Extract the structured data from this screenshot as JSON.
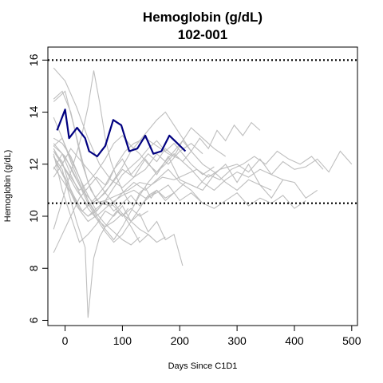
{
  "chart_data": {
    "type": "line",
    "title": "Hemoglobin (g/dL)",
    "subtitle": "102-001",
    "xlabel": "Days Since C1D1",
    "ylabel": "Hemoglobin (g/dL)",
    "xlim": [
      -30,
      510
    ],
    "ylim": [
      5.8,
      16.5
    ],
    "xticks": [
      0,
      100,
      200,
      300,
      400,
      500
    ],
    "yticks": [
      6,
      8,
      10,
      12,
      14,
      16
    ],
    "reference_lines": [
      16,
      10.5
    ],
    "grid": false,
    "highlight_color": "#000080",
    "background_color": "#bebebe",
    "highlight": {
      "name": "102-001",
      "x": [
        -14,
        0,
        7,
        21,
        35,
        42,
        56,
        70,
        84,
        98,
        112,
        126,
        140,
        154,
        168,
        182,
        196,
        210
      ],
      "y": [
        13.3,
        14.1,
        13.0,
        13.4,
        13.0,
        12.5,
        12.3,
        12.7,
        13.7,
        13.5,
        12.5,
        12.6,
        13.1,
        12.4,
        12.5,
        13.1,
        12.8,
        12.5
      ]
    },
    "background": [
      {
        "x": [
          -20,
          0,
          15,
          30,
          50,
          70,
          90,
          110,
          130,
          150,
          170,
          190,
          210,
          230,
          250,
          270,
          300,
          320,
          340,
          360,
          380,
          400,
          420,
          440,
          460,
          480,
          500
        ],
        "y": [
          12.7,
          12.3,
          11.6,
          11.0,
          10.5,
          10.6,
          10.8,
          11.0,
          11.3,
          11.2,
          11.5,
          11.4,
          11.6,
          11.8,
          11.5,
          11.8,
          12.0,
          11.7,
          12.2,
          11.6,
          12.1,
          11.8,
          11.9,
          12.2,
          11.7,
          12.5,
          12.0
        ]
      },
      {
        "x": [
          -20,
          0,
          20,
          40,
          60,
          80,
          100,
          120,
          140,
          160,
          180,
          200,
          220,
          240,
          260,
          280,
          300,
          320,
          340,
          360,
          380,
          400,
          420,
          440
        ],
        "y": [
          12.5,
          11.8,
          11.0,
          10.4,
          10.7,
          11.2,
          11.8,
          11.5,
          12.2,
          11.6,
          12.3,
          11.4,
          11.2,
          11.0,
          11.6,
          12.0,
          11.3,
          12.0,
          11.2,
          10.7,
          11.4,
          11.3,
          10.7,
          11.0
        ]
      },
      {
        "x": [
          -20,
          0,
          20,
          40,
          60,
          80,
          100,
          120,
          140,
          160,
          180,
          200,
          220,
          240
        ],
        "y": [
          15.7,
          15.2,
          14.2,
          13.0,
          12.0,
          11.4,
          11.1,
          11.5,
          11.8,
          12.4,
          12.0,
          12.5,
          12.8,
          12.4
        ]
      },
      {
        "x": [
          -20,
          0,
          15,
          30,
          45,
          60,
          80,
          100,
          120,
          140,
          160,
          180,
          200,
          220,
          240
        ],
        "y": [
          14.4,
          14.8,
          13.5,
          12.0,
          11.0,
          10.5,
          10.4,
          10.9,
          11.3,
          11.0,
          11.4,
          11.8,
          11.3,
          11.0,
          10.5
        ]
      },
      {
        "x": [
          -15,
          0,
          15,
          30,
          45,
          60,
          75,
          90,
          105,
          120,
          140,
          160,
          180,
          200,
          220,
          240,
          260,
          280,
          300,
          320,
          340,
          360,
          380
        ],
        "y": [
          12.0,
          11.5,
          10.8,
          10.2,
          10.5,
          10.9,
          11.3,
          12.0,
          12.5,
          12.8,
          13.0,
          12.7,
          12.4,
          12.2,
          11.8,
          11.3,
          11.0,
          11.4,
          11.7,
          11.5,
          11.8,
          11.6,
          11.4
        ]
      },
      {
        "x": [
          -20,
          0,
          20,
          40,
          60,
          80,
          100,
          120,
          140,
          160,
          180,
          200,
          220,
          240,
          260,
          280,
          300,
          320,
          340,
          360,
          380,
          400,
          420
        ],
        "y": [
          12.3,
          11.4,
          10.4,
          9.8,
          10.1,
          10.5,
          10.8,
          11.0,
          10.7,
          10.9,
          11.2,
          10.6,
          10.9,
          10.5,
          10.3,
          10.6,
          10.9,
          10.4,
          10.7,
          10.5,
          10.8,
          10.3,
          10.6
        ]
      },
      {
        "x": [
          -20,
          -5,
          10,
          25,
          40,
          55,
          70,
          85,
          100,
          115,
          130,
          145,
          160,
          175,
          190,
          205
        ],
        "y": [
          12.4,
          11.0,
          10.0,
          9.0,
          9.3,
          9.7,
          10.2,
          10.0,
          10.4,
          9.8,
          10.1,
          9.4,
          9.8,
          9.1,
          9.3,
          8.1
        ]
      },
      {
        "x": [
          -20,
          -5,
          10,
          25,
          40,
          55,
          70,
          85,
          100,
          115,
          130,
          145,
          160,
          175,
          190,
          210,
          230,
          250,
          270,
          290,
          310,
          330,
          350,
          370,
          390,
          410,
          430,
          450
        ],
        "y": [
          12.5,
          12.1,
          11.0,
          10.3,
          10.0,
          10.3,
          10.6,
          10.2,
          10.5,
          10.8,
          10.4,
          10.7,
          11.0,
          10.6,
          10.9,
          11.3,
          11.1,
          11.6,
          11.4,
          11.8,
          12.0,
          12.3,
          12.0,
          12.5,
          12.2,
          12.0,
          12.3,
          11.8
        ]
      },
      {
        "x": [
          -20,
          -5,
          10,
          25,
          40,
          55,
          70,
          85,
          100,
          115,
          130,
          145
        ],
        "y": [
          13.8,
          13.0,
          12.2,
          11.5,
          10.8,
          10.2,
          10.6,
          10.4,
          10.0,
          10.3,
          10.0,
          10.2
        ]
      },
      {
        "x": [
          -20,
          -5,
          10,
          25,
          40,
          55,
          70,
          85,
          100,
          115,
          130,
          145,
          160,
          175,
          190,
          205,
          220,
          235,
          250,
          265,
          280,
          295,
          310,
          325,
          340
        ],
        "y": [
          8.6,
          9.3,
          10.0,
          10.7,
          11.1,
          11.5,
          11.2,
          11.8,
          12.2,
          11.6,
          12.0,
          12.4,
          12.1,
          12.6,
          12.3,
          12.9,
          12.5,
          13.0,
          12.6,
          13.3,
          12.9,
          13.5,
          13.1,
          13.6,
          13.3
        ]
      },
      {
        "x": [
          -20,
          -5,
          10,
          25,
          40,
          55,
          70,
          85,
          100,
          115,
          130,
          145,
          160,
          175,
          190,
          205,
          220,
          240,
          260,
          280,
          300,
          320,
          340,
          360
        ],
        "y": [
          14.5,
          14.8,
          14.0,
          12.6,
          11.3,
          10.6,
          10.9,
          11.4,
          11.9,
          12.5,
          12.9,
          13.3,
          13.7,
          14.0,
          13.5,
          13.0,
          12.5,
          12.0,
          11.7,
          11.3,
          11.0,
          11.4,
          11.2,
          11.0
        ]
      },
      {
        "x": [
          -20,
          -5,
          10,
          20,
          35,
          40,
          50,
          60,
          70,
          80,
          90,
          100,
          110
        ],
        "y": [
          12.3,
          11.8,
          10.6,
          9.8,
          8.8,
          6.1,
          8.4,
          9.2,
          9.6,
          9.9,
          10.2,
          10.0,
          10.3
        ]
      },
      {
        "x": [
          -20,
          -5,
          10,
          20,
          30,
          40,
          50,
          60,
          70,
          80,
          90,
          100,
          110,
          120,
          130,
          140,
          150,
          160
        ],
        "y": [
          9.5,
          10.6,
          11.7,
          12.4,
          13.2,
          14.2,
          15.6,
          14.4,
          13.0,
          12.1,
          11.5,
          11.0,
          10.6,
          10.4,
          10.9,
          11.1,
          10.7,
          11.0
        ]
      },
      {
        "x": [
          -20,
          -5,
          10,
          25,
          40,
          55,
          70,
          85,
          100,
          115,
          130,
          145,
          160,
          175,
          190,
          205,
          220,
          240,
          260,
          280
        ],
        "y": [
          13.0,
          12.8,
          12.3,
          11.5,
          10.6,
          10.0,
          9.5,
          9.1,
          9.6,
          10.2,
          10.8,
          11.3,
          11.7,
          12.1,
          12.5,
          12.9,
          13.4,
          13.0,
          12.6,
          12.3
        ]
      },
      {
        "x": [
          -20,
          -5,
          10,
          25,
          40,
          55,
          70,
          85,
          100,
          115,
          130,
          145,
          160,
          175,
          190
        ],
        "y": [
          11.8,
          12.4,
          11.9,
          11.2,
          10.5,
          9.9,
          9.4,
          9.0,
          9.3,
          9.8,
          10.3,
          10.8,
          11.0,
          10.7,
          10.9
        ]
      },
      {
        "x": [
          -20,
          -5,
          10,
          25,
          40,
          55,
          70,
          85,
          100,
          115,
          130,
          145,
          160,
          175,
          190,
          205,
          220
        ],
        "y": [
          12.6,
          12.0,
          11.5,
          11.0,
          11.3,
          11.7,
          12.2,
          12.8,
          13.1,
          12.7,
          12.4,
          12.0,
          11.7,
          12.0,
          12.4,
          12.1,
          12.5
        ]
      },
      {
        "x": [
          -20,
          -5,
          10,
          25,
          40,
          55,
          70,
          85,
          100,
          115,
          130,
          145,
          160
        ],
        "y": [
          12.8,
          12.4,
          11.6,
          10.9,
          10.3,
          9.9,
          9.6,
          9.8,
          10.1,
          9.6,
          9.0,
          9.3,
          9.0
        ]
      },
      {
        "x": [
          -20,
          -5,
          10,
          25,
          40,
          55,
          70,
          85,
          100,
          115,
          130,
          145,
          160,
          175,
          190,
          205,
          220,
          240,
          260
        ],
        "y": [
          11.9,
          11.4,
          10.9,
          10.3,
          10.0,
          10.2,
          10.6,
          11.1,
          11.6,
          11.9,
          12.2,
          12.6,
          12.9,
          12.5,
          12.8,
          12.4,
          12.0,
          11.6,
          11.9
        ]
      },
      {
        "x": [
          -20,
          -5,
          10,
          25,
          40,
          55,
          70,
          85,
          100,
          115,
          130
        ],
        "y": [
          12.7,
          13.0,
          12.1,
          11.3,
          10.6,
          10.1,
          9.7,
          9.4,
          9.1,
          8.9,
          9.2
        ]
      },
      {
        "x": [
          -20,
          -5,
          10,
          25,
          40,
          55,
          70,
          85,
          100,
          115,
          130,
          145,
          160,
          175
        ],
        "y": [
          11.5,
          12.0,
          12.6,
          12.2,
          11.8,
          11.4,
          10.9,
          10.5,
          10.1,
          9.8,
          9.5,
          9.3,
          9.0,
          9.2
        ]
      }
    ]
  }
}
